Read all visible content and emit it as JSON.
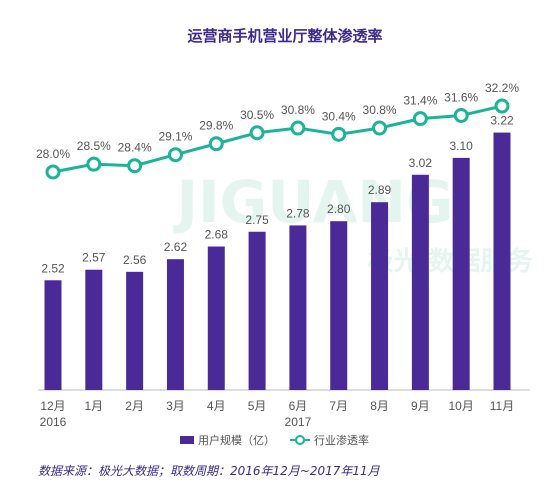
{
  "title": "运营商手机营业厅整体渗透率",
  "source_note": "数据来源：极光大数据；取数周期：2016年12月~2017年11月",
  "watermark": {
    "brand_en": "JIGUANG",
    "brand_cn": "极光 数据服务"
  },
  "colors": {
    "bar": "#4a2a96",
    "line": "#1db398",
    "title": "#3d2a8a",
    "source": "#3d2a8a",
    "watermark": "#e4f5ef"
  },
  "legend": [
    {
      "label": "用户规模（亿）",
      "kind": "bar"
    },
    {
      "label": "行业渗透率",
      "kind": "line"
    }
  ],
  "chart_data": {
    "type": "bar",
    "categories": [
      "12月",
      "1月",
      "2月",
      "3月",
      "4月",
      "5月",
      "6月",
      "7月",
      "8月",
      "9月",
      "10月",
      "11月"
    ],
    "year_labels": [
      {
        "category": "12月",
        "year": "2016"
      },
      {
        "category": "6月",
        "year": "2017"
      }
    ],
    "series": [
      {
        "name": "用户规模（亿）",
        "type": "bar",
        "values": [
          2.52,
          2.57,
          2.56,
          2.62,
          2.68,
          2.75,
          2.78,
          2.8,
          2.89,
          3.02,
          3.1,
          3.22
        ],
        "labels": [
          "2.52",
          "2.57",
          "2.56",
          "2.62",
          "2.68",
          "2.75",
          "2.78",
          "2.80",
          "2.89",
          "3.02",
          "3.10",
          "3.22"
        ]
      },
      {
        "name": "行业渗透率",
        "type": "line",
        "values": [
          28.0,
          28.5,
          28.4,
          29.1,
          29.8,
          30.5,
          30.8,
          30.4,
          30.8,
          31.4,
          31.6,
          32.2
        ],
        "labels": [
          "28.0%",
          "28.5%",
          "28.4%",
          "29.1%",
          "29.8%",
          "30.5%",
          "30.8%",
          "30.4%",
          "30.8%",
          "31.4%",
          "31.6%",
          "32.2%"
        ]
      }
    ],
    "grid": false,
    "legend_position": "bottom"
  }
}
